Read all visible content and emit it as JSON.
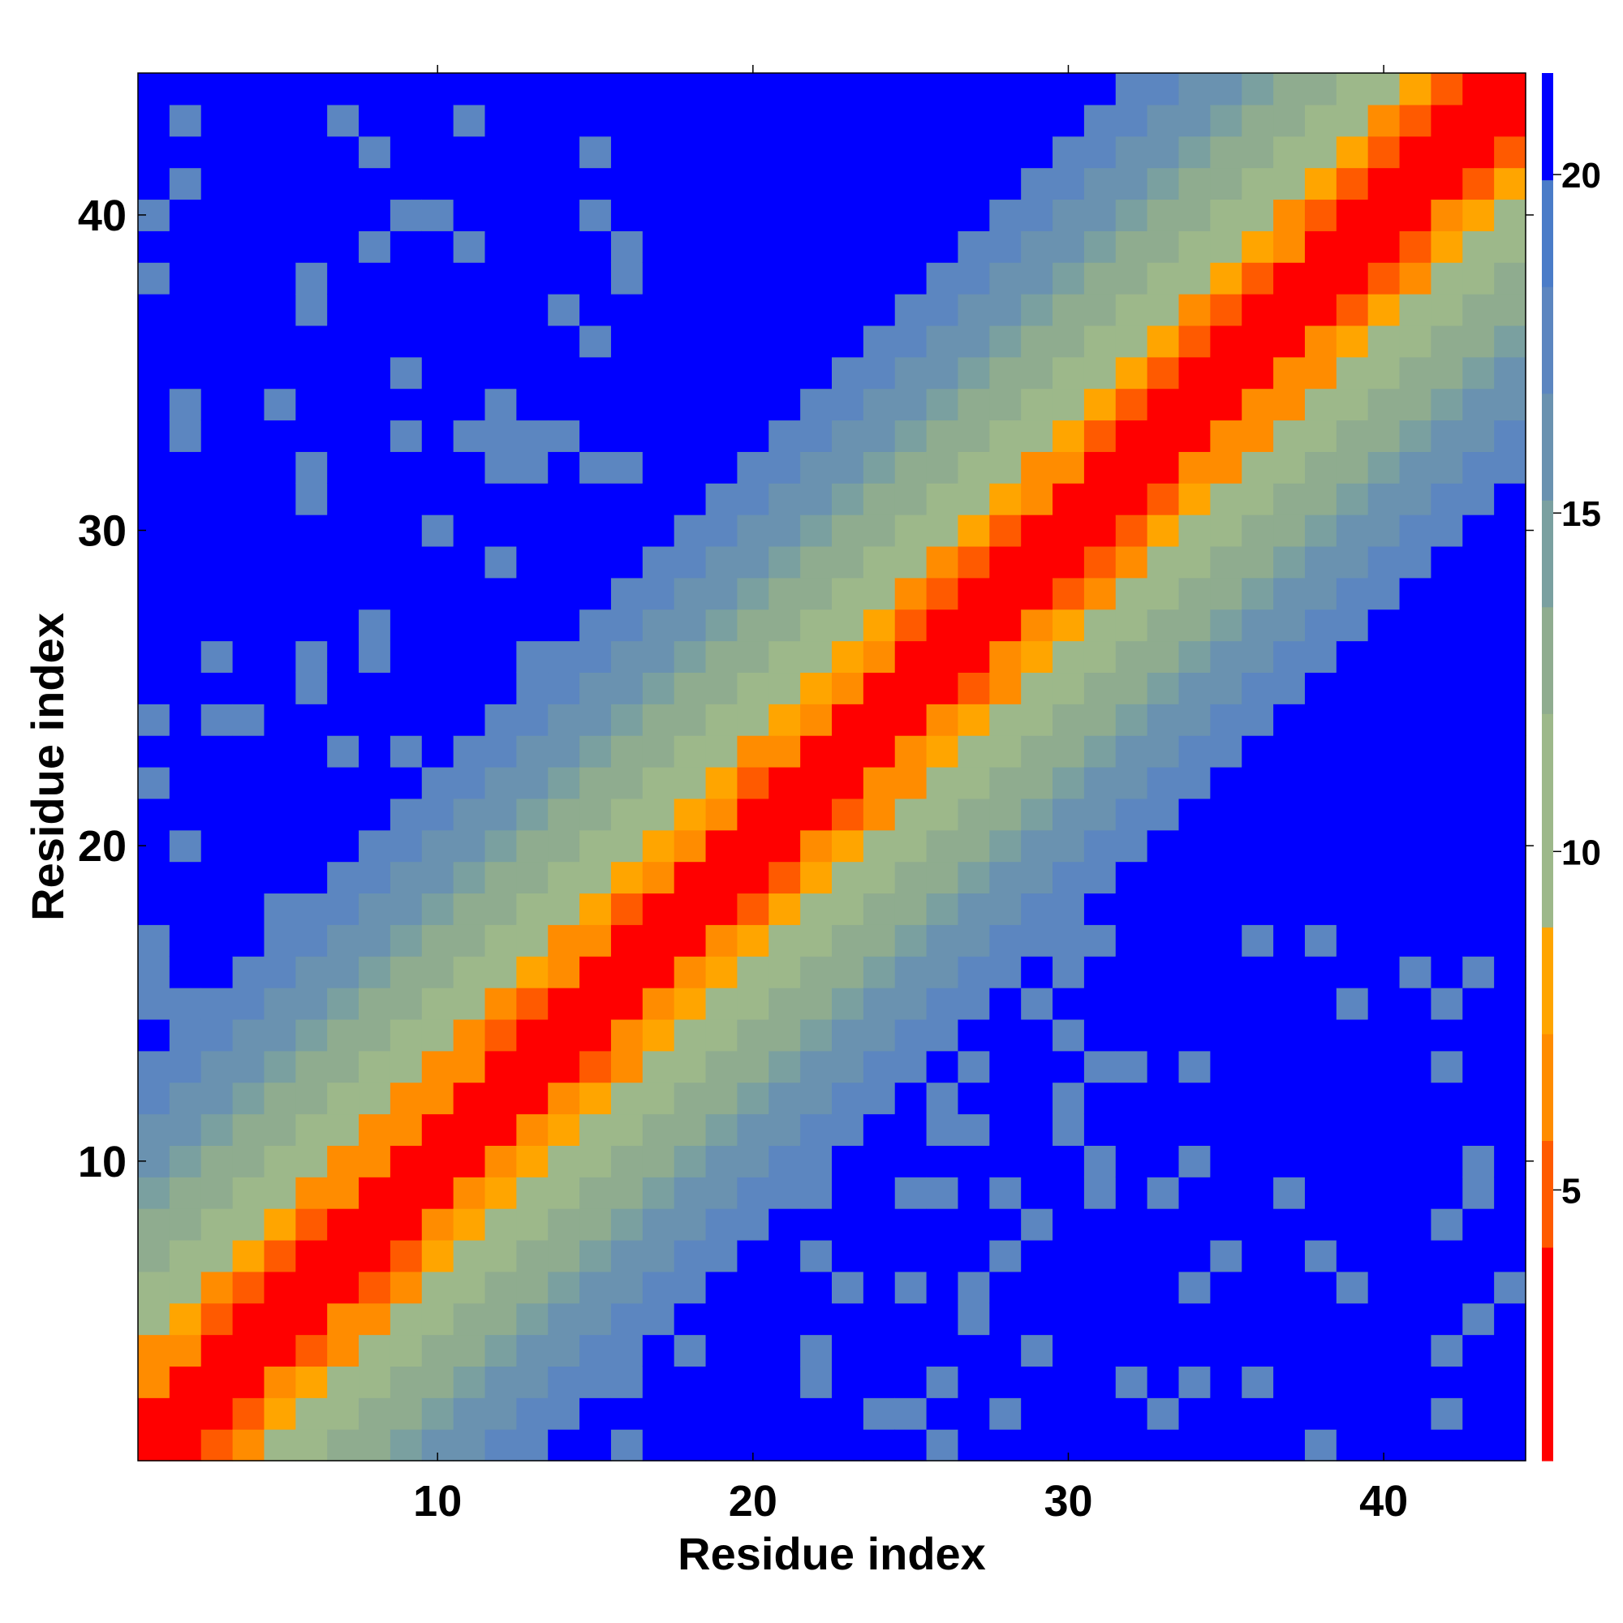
{
  "chart_data": {
    "type": "heatmap",
    "title": "",
    "xlabel": "Residue index",
    "ylabel": "Residue index",
    "x_range": [
      1,
      44
    ],
    "y_range": [
      1,
      44
    ],
    "xticks": [
      "10",
      "20",
      "30",
      "40"
    ],
    "yticks": [
      "10",
      "20",
      "30",
      "40"
    ],
    "colorbar": {
      "ticks": [
        "5",
        "10",
        "15",
        "20"
      ],
      "range": [
        1,
        21.5
      ],
      "colors": [
        "#ff0000",
        "#ff0000",
        "#ff5a00",
        "#ff8c00",
        "#ffa500",
        "#9db88a",
        "#9db88a",
        "#8fac8f",
        "#7aa0a0",
        "#6a92b0",
        "#5c86c0",
        "#4a7cc8",
        "#0000ff"
      ]
    },
    "description": "Symmetric-band residue distance matrix; red diagonal (distance ~1-3) fading through orange (~4-7), green-gray (~8-13), steel blue (~14-20) to saturated blue (>20) off-diagonal, with scattered blue-gray patches near the upper-left and lower-right regions."
  }
}
